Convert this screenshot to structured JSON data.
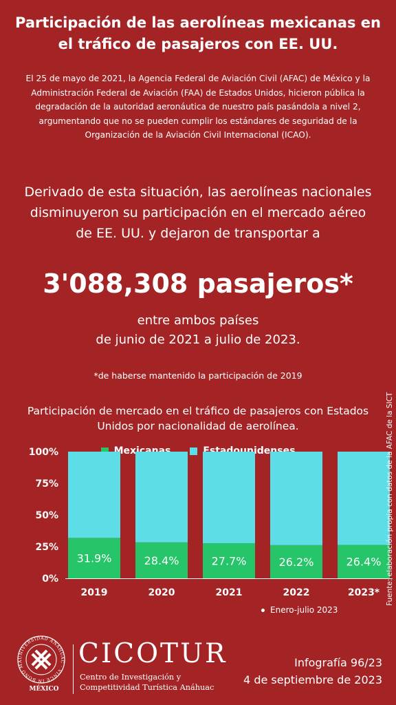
{
  "title": "Participación de las aerolíneas mexicanas en el tráfico de pasajeros con EE. UU.",
  "intro": "El 25 de mayo de 2021, la Agencia Federal de Aviación Civil (AFAC) de México y la Administración Federal de Aviación (FAA) de Estados Unidos, hicieron pública la degradación de la autoridad aeronáutica de nuestro país pasándola a nivel 2, argumentando que no se pueden cumplir los estándares de seguridad de la Organización de la Aviación Civil Internacional (ICAO).",
  "highlight": "Derivado de esta situación, las aerolíneas nacionales disminuyeron su participación en el mercado aéreo de EE. UU. y dejaron de transportar a",
  "big_number": "3'088,308 pasajeros*",
  "between_line1": "entre ambos países",
  "between_line2": "de junio de 2021 a julio de 2023.",
  "footnote": "*de haberse mantenido la participación de 2019",
  "chart_title": "Participación de mercado en el tráfico de pasajeros con Estados Unidos por nacionalidad de aerolínea.",
  "note": "Enero-julio 2023",
  "source": "Fuente: elaboración propia con datos de la AFAC de la SICT",
  "logo": {
    "seal_text": "UNIVERSIDAD ANÁHUAC · VINCE IN BONO MALUM",
    "seal_country": "MÉXICO",
    "brand": "CICOTUR",
    "brand_sub_line1": "Centro de Investigación y",
    "brand_sub_line2": "Competitividad Turística Anáhuac"
  },
  "infografia": "Infografía 96/23",
  "date": "4 de septiembre de 2023",
  "colors": {
    "background": "#a42426",
    "mexicanas": "#26c56a",
    "estadounidenses": "#5ddde6"
  },
  "chart_data": {
    "type": "bar",
    "stacked": true,
    "percent": true,
    "categories": [
      "2019",
      "2020",
      "2021",
      "2022",
      "2023*"
    ],
    "series": [
      {
        "name": "Mexicanas",
        "values": [
          31.9,
          28.4,
          27.7,
          26.2,
          26.4
        ],
        "labels": [
          "31.9%",
          "28.4%",
          "27.7%",
          "26.2%",
          "26.4%"
        ]
      },
      {
        "name": "Estadounidenses",
        "values": [
          68.1,
          71.6,
          72.3,
          73.8,
          73.6
        ]
      }
    ],
    "y_ticks": [
      "0%",
      "25%",
      "50%",
      "75%",
      "100%"
    ],
    "ylim": [
      0,
      100
    ],
    "legend_position": "top"
  }
}
